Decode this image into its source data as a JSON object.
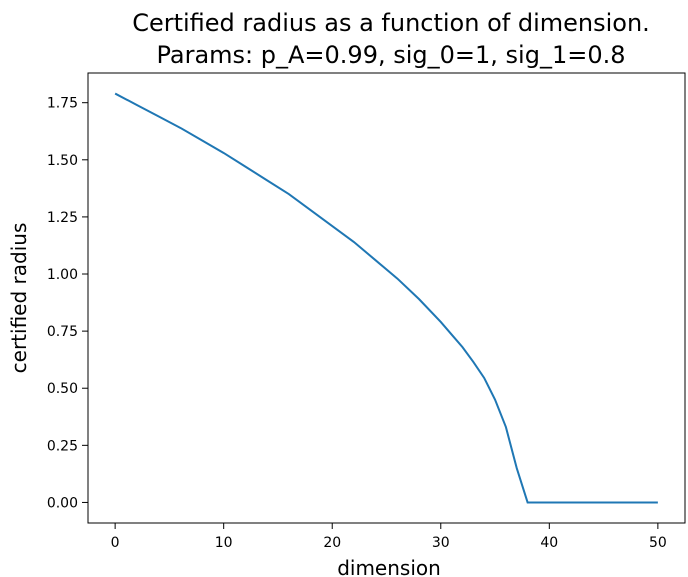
{
  "chart_data": {
    "type": "line",
    "title_line1": "Certified radius as a function of dimension.",
    "title_line2": "Params: p_A=0.99, sig_0=1, sig_1=0.8",
    "xlabel": "dimension",
    "ylabel": "certified radius",
    "xlim": [
      -2.5,
      52.5
    ],
    "ylim": [
      -0.09,
      1.88
    ],
    "xticks": [
      0,
      10,
      20,
      30,
      40,
      50
    ],
    "xtick_labels": [
      "0",
      "10",
      "20",
      "30",
      "40",
      "50"
    ],
    "yticks": [
      0.0,
      0.25,
      0.5,
      0.75,
      1.0,
      1.25,
      1.5,
      1.75
    ],
    "ytick_labels": [
      "0.00",
      "0.25",
      "0.50",
      "0.75",
      "1.00",
      "1.25",
      "1.50",
      "1.75"
    ],
    "grid": false,
    "line_color": "#1f77b4",
    "series": [
      {
        "x": [
          0,
          2,
          4,
          6,
          8,
          10,
          12,
          14,
          16,
          18,
          20,
          22,
          24,
          26,
          28,
          30,
          31,
          32,
          33,
          34,
          35,
          36,
          37,
          38,
          40,
          42,
          44,
          46,
          48,
          50
        ],
        "values": [
          1.79,
          1.74,
          1.69,
          1.64,
          1.585,
          1.53,
          1.47,
          1.41,
          1.35,
          1.28,
          1.21,
          1.14,
          1.06,
          0.98,
          0.89,
          0.79,
          0.735,
          0.68,
          0.615,
          0.545,
          0.45,
          0.33,
          0.15,
          0.0,
          0.0,
          0.0,
          0.0,
          0.0,
          0.0,
          0.0
        ]
      }
    ]
  }
}
